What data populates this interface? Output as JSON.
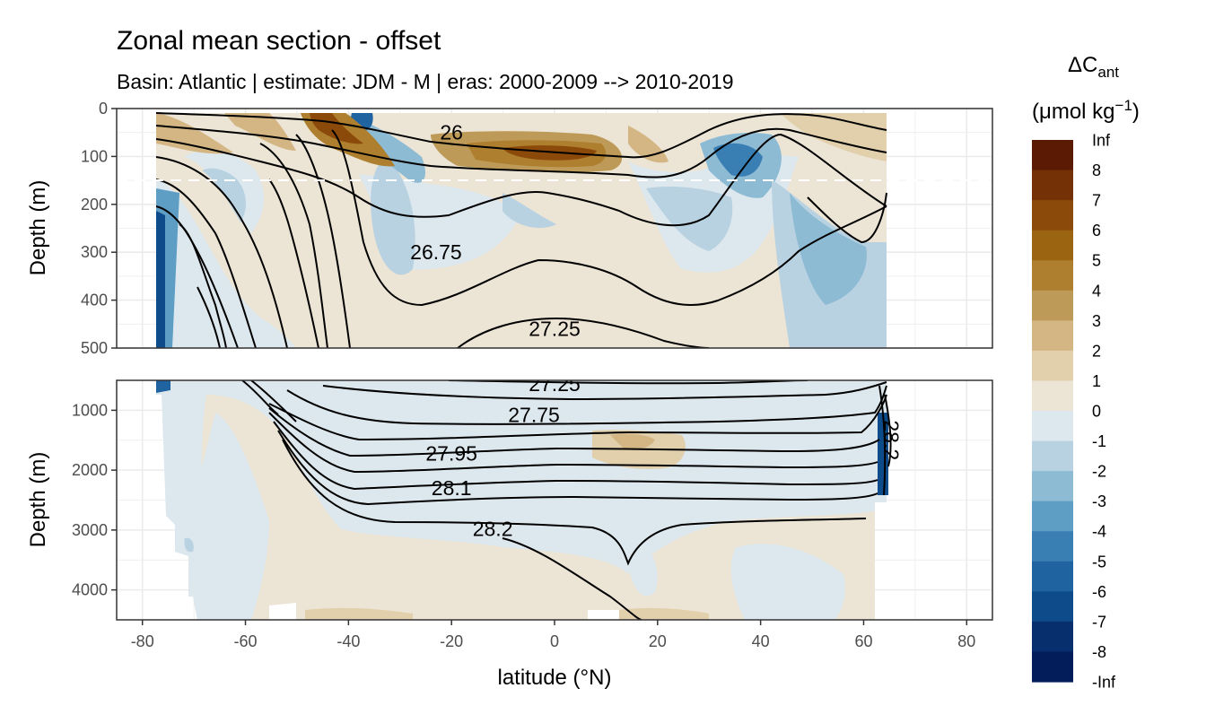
{
  "chart_data": {
    "type": "contour",
    "title": "Zonal mean section - offset",
    "subtitle": "Basin: Atlantic | estimate: JDM - M | eras: 2000-2009 --> 2010-2019",
    "xlabel": "latitude (°N)",
    "ylabel": "Depth (m)",
    "xlim": [
      -85,
      85
    ],
    "xticks": [
      "-80",
      "-60",
      "-40",
      "-20",
      "0",
      "20",
      "40",
      "60",
      "80"
    ],
    "panels": [
      {
        "name": "upper",
        "ylim": [
          0,
          500
        ],
        "yticks": [
          "0",
          "100",
          "200",
          "300",
          "400",
          "500"
        ]
      },
      {
        "name": "lower",
        "ylim": [
          500,
          4500
        ],
        "yticks": [
          "1000",
          "2000",
          "3000",
          "4000"
        ]
      }
    ],
    "reference_depth": 150,
    "legend": {
      "title_main": "ΔC",
      "title_sub": "ant",
      "unit_main": "(μmol kg",
      "unit_sup": "−1",
      "unit_close": ")",
      "labels": [
        "Inf",
        "8",
        "7",
        "6",
        "5",
        "4",
        "3",
        "2",
        "1",
        "0",
        "-1",
        "-2",
        "-3",
        "-4",
        "-5",
        "-6",
        "-7",
        "-8",
        "-Inf"
      ],
      "colors": [
        "#5b1a04",
        "#733105",
        "#8c4a0a",
        "#9a6410",
        "#ad7f2e",
        "#be9a58",
        "#d3b684",
        "#e2d0ad",
        "#ece4d4",
        "#dde8ee",
        "#b9d2e2",
        "#8ebbd4",
        "#5e9ec5",
        "#3a7fb4",
        "#1f63a0",
        "#0e4b8a",
        "#072f6e",
        "#031d5a"
      ]
    },
    "contours": [
      {
        "level": "26",
        "label": "26"
      },
      {
        "level": "26.75",
        "label": "26.75"
      },
      {
        "level": "27.25",
        "label": "27.25"
      },
      {
        "level": "27.75",
        "label": "27.75"
      },
      {
        "level": "27.95",
        "label": "27.95"
      },
      {
        "level": "28.1",
        "label": "28.1"
      },
      {
        "level": "28.2",
        "label": "28.2"
      }
    ],
    "extra_labels": [
      "27.25",
      "28.2"
    ]
  }
}
